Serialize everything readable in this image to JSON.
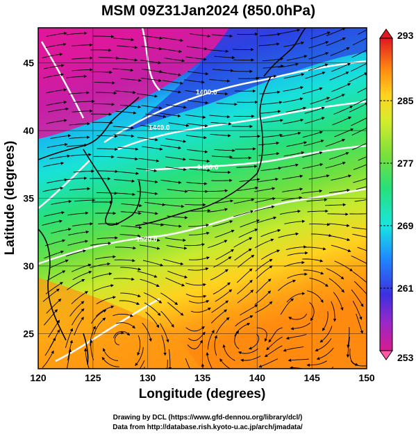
{
  "title": "MSM 09Z31Jan2024 (850.0hPa)",
  "map": {
    "x_axis": {
      "label": "Longitude (degrees)",
      "range": [
        120,
        150
      ],
      "ticks": [
        "120",
        "125",
        "130",
        "135",
        "140",
        "145",
        "150"
      ]
    },
    "y_axis": {
      "label": "Latitude  (degrees)",
      "range": [
        22.4,
        47.6
      ],
      "ticks": [
        "25",
        "30",
        "35",
        "40",
        "45"
      ]
    },
    "contour_labels": [
      "1400.0",
      "1440.0",
      "1480.0",
      "1520.0"
    ],
    "streamlines": "wind streamlines with arrowheads",
    "coastlines": "black coastlines of East Asia and Japan"
  },
  "colorbar": {
    "ticks": [
      "293",
      "285",
      "277",
      "269",
      "261",
      "253"
    ],
    "range": [
      253,
      293
    ],
    "colors": [
      "#d81b8f",
      "#7a2bd6",
      "#1d3be0",
      "#1fa0ff",
      "#19e6e0",
      "#27e07a",
      "#7ee03a",
      "#d8ec2c",
      "#ffd21f",
      "#ff9a10",
      "#ff5a12",
      "#e01822"
    ]
  },
  "credits": {
    "line1": "Drawing by DCL (https://www.gfd-dennou.org/library/dcl/)",
    "line2": "Data from http://database.rish.kyoto-u.ac.jp/arch/jmadata/"
  }
}
